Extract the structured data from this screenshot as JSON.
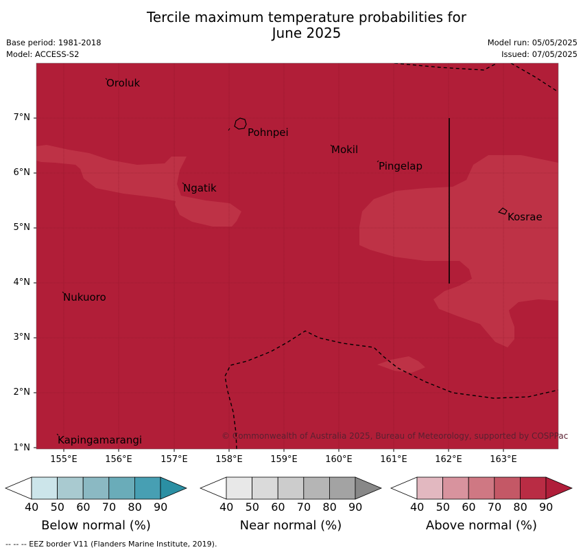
{
  "title_line1": "Tercile maximum temperature probabilities for",
  "title_line2": "June 2025",
  "base_period": "Base period: 1981-2018",
  "model": "Model: ACCESS-S2",
  "model_run": "Model run: 05/05/2025",
  "issued": "Issued: 07/05/2025",
  "copyright": "© Commonwealth of Australia 2025, Bureau of Meteorology, supported by COSPPac",
  "lat_ticks": [
    "7°N",
    "6°N",
    "5°N",
    "4°N",
    "3°N",
    "2°N",
    "1°N"
  ],
  "lon_ticks": [
    "155°E",
    "156°E",
    "157°E",
    "158°E",
    "159°E",
    "160°E",
    "161°E",
    "162°E",
    "163°E"
  ],
  "places": {
    "oroluk": "Oroluk",
    "pohnpei": "Pohnpei",
    "mokil": "Mokil",
    "pingelap": "Pingelap",
    "ngatik": "Ngatik",
    "kosrae": "Kosrae",
    "nukuoro": "Nukuoro",
    "kapingamarangi": "Kapingamarangi"
  },
  "colorbars": [
    {
      "title": "Below normal (%)",
      "labels": [
        "40",
        "50",
        "60",
        "70",
        "80",
        "90"
      ],
      "colors": [
        "#ffffff",
        "#cce5ea",
        "#a9cad0",
        "#8bb9c3",
        "#6aacb9",
        "#479fb3",
        "#2b8fa3"
      ]
    },
    {
      "title": "Near normal (%)",
      "labels": [
        "40",
        "50",
        "60",
        "70",
        "80",
        "90"
      ],
      "colors": [
        "#ffffff",
        "#e8e8e8",
        "#dadada",
        "#cccccc",
        "#b5b5b5",
        "#a3a3a3",
        "#888888"
      ]
    },
    {
      "title": "Above normal (%)",
      "labels": [
        "40",
        "50",
        "60",
        "70",
        "80",
        "90"
      ],
      "colors": [
        "#ffffff",
        "#e2b8c0",
        "#d8939e",
        "#cf7883",
        "#c45866",
        "#b92c44",
        "#b01e3a"
      ]
    }
  ],
  "map_colors": {
    "high": "#b11e38",
    "medium": "#be3246"
  },
  "footer": "-- -- -- EEZ border V11 (Flanders Marine Institute, 2019)."
}
